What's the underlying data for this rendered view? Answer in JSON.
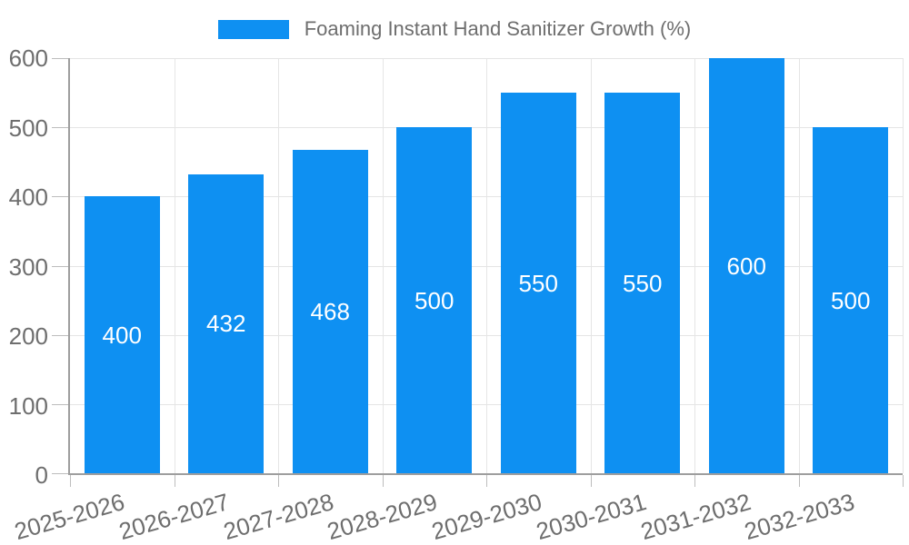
{
  "legend": {
    "label": "Foaming Instant Hand Sanitizer Growth (%)",
    "position": "top"
  },
  "colors": {
    "bar": "#0E90F2",
    "grid": "#E5E5E5",
    "axis": "#9E9E9E",
    "tick": "#BDBDBD",
    "text": "#6E6E6E",
    "value_label": "#FFFFFF",
    "background": "#FFFFFF"
  },
  "chart_data": {
    "type": "bar",
    "title": "Foaming Instant Hand Sanitizer Growth (%)",
    "categories": [
      "2025-2026",
      "2026-2027",
      "2027-2028",
      "2028-2029",
      "2029-2030",
      "2030-2031",
      "2031-2032",
      "2032-2033"
    ],
    "values": [
      400,
      432,
      468,
      500,
      550,
      550,
      600,
      500
    ],
    "xlabel": "",
    "ylabel": "",
    "ylim": [
      0,
      600
    ],
    "yticks": [
      0,
      100,
      200,
      300,
      400,
      500,
      600
    ],
    "grid": true,
    "legend_position": "top",
    "value_labels": "inside-center",
    "x_label_rotation_deg": -16,
    "bar_width_fraction": 0.725
  }
}
